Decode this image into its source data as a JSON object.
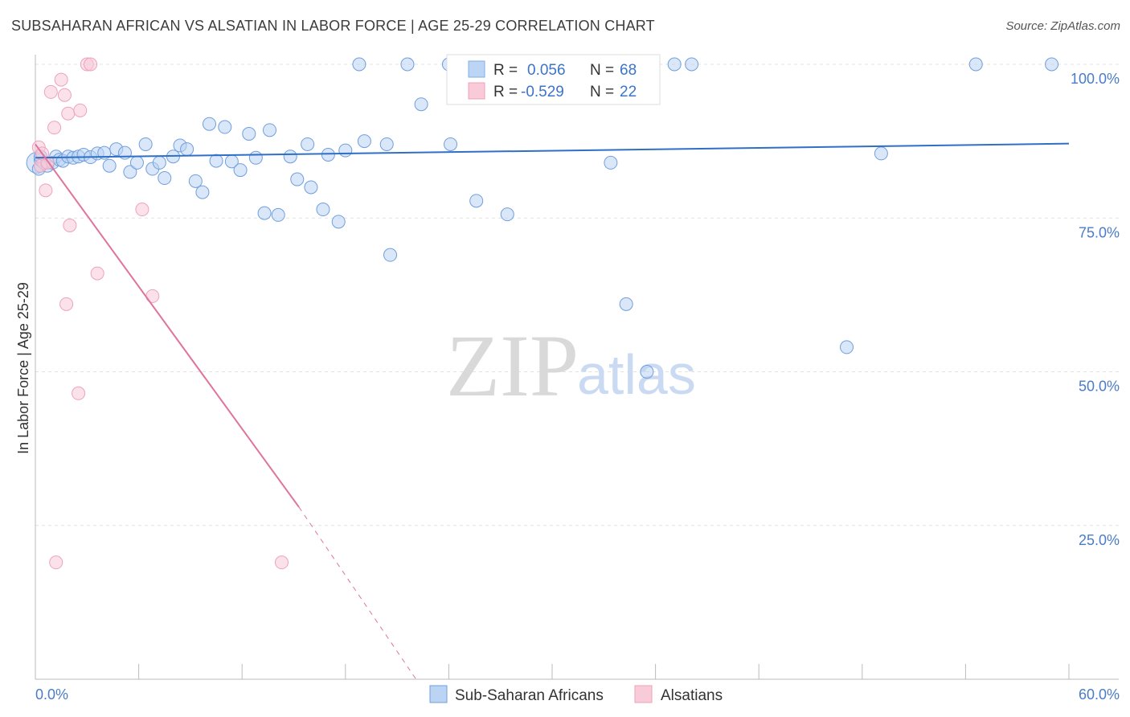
{
  "chart_data": {
    "type": "scatter",
    "title": "SUBSAHARAN AFRICAN VS ALSATIAN IN LABOR FORCE | AGE 25-29 CORRELATION CHART",
    "source": "Source: ZipAtlas.com",
    "xlabel": "",
    "ylabel": "In Labor Force | Age 25-29",
    "xlim": [
      0,
      60
    ],
    "ylim": [
      0,
      100
    ],
    "x_tick_labels": [
      {
        "value": 0,
        "label": "0.0%"
      },
      {
        "value": 60,
        "label": "60.0%"
      }
    ],
    "y_tick_labels": [
      {
        "value": 100,
        "label": "100.0%"
      },
      {
        "value": 75,
        "label": "75.0%"
      },
      {
        "value": 50,
        "label": "50.0%"
      },
      {
        "value": 25,
        "label": "25.0%"
      }
    ],
    "x_minor_ticks": [
      6,
      12,
      18,
      24,
      30,
      36,
      42,
      48,
      54
    ],
    "watermark": {
      "zip": "ZIP",
      "atlas": "atlas"
    },
    "stats": [
      {
        "r_label": "R =",
        "r_value": "0.056",
        "n_label": "N =",
        "n_value": "68",
        "color": "#7faee8",
        "fill": "#bdd5f5"
      },
      {
        "r_label": "R =",
        "r_value": "-0.529",
        "n_label": "N =",
        "n_value": "22",
        "color": "#f0a0b8",
        "fill": "#f9cad8"
      }
    ],
    "series": [
      {
        "name": "Sub-Saharan Africans",
        "color": "#6f9fde",
        "fill": "#bcd4f3",
        "trend": {
          "x": [
            0,
            60
          ],
          "y": [
            84.8,
            87.1
          ],
          "color": "#2f6fc7",
          "dashed_from": null
        },
        "points": [
          [
            0.1,
            84
          ],
          [
            0.2,
            83
          ],
          [
            0.3,
            84.5
          ],
          [
            0.5,
            84
          ],
          [
            0.7,
            83.5
          ],
          [
            1,
            84
          ],
          [
            1.2,
            85
          ],
          [
            1.4,
            84.5
          ],
          [
            1.6,
            84.3
          ],
          [
            1.9,
            85
          ],
          [
            2.2,
            84.8
          ],
          [
            2.5,
            85
          ],
          [
            2.8,
            85.3
          ],
          [
            3.2,
            84.9
          ],
          [
            3.6,
            85.5
          ],
          [
            4,
            85.6
          ],
          [
            4.3,
            83.5
          ],
          [
            4.7,
            86.2
          ],
          [
            5.2,
            85.6
          ],
          [
            5.5,
            82.5
          ],
          [
            5.9,
            84
          ],
          [
            6.4,
            87
          ],
          [
            6.8,
            83
          ],
          [
            7.2,
            84
          ],
          [
            7.5,
            81.5
          ],
          [
            8,
            85
          ],
          [
            8.4,
            86.8
          ],
          [
            8.8,
            86.2
          ],
          [
            9.3,
            81
          ],
          [
            9.7,
            79.2
          ],
          [
            10.1,
            90.3
          ],
          [
            10.5,
            84.3
          ],
          [
            11,
            89.8
          ],
          [
            11.4,
            84.2
          ],
          [
            11.9,
            82.8
          ],
          [
            12.4,
            88.7
          ],
          [
            12.8,
            84.8
          ],
          [
            13.3,
            75.8
          ],
          [
            13.6,
            89.3
          ],
          [
            14.1,
            75.5
          ],
          [
            14.8,
            85
          ],
          [
            15.2,
            81.3
          ],
          [
            15.8,
            87
          ],
          [
            16,
            80
          ],
          [
            16.7,
            76.4
          ],
          [
            17,
            85.3
          ],
          [
            17.6,
            74.4
          ],
          [
            18,
            86
          ],
          [
            18.8,
            100
          ],
          [
            19.1,
            87.5
          ],
          [
            20.4,
            87
          ],
          [
            20.6,
            69
          ],
          [
            21.6,
            100
          ],
          [
            22.4,
            93.5
          ],
          [
            24,
            100
          ],
          [
            24.1,
            87
          ],
          [
            25.6,
            77.8
          ],
          [
            27.4,
            75.6
          ],
          [
            33.4,
            84
          ],
          [
            34.3,
            61
          ],
          [
            35.5,
            50
          ],
          [
            37.1,
            100
          ],
          [
            38.1,
            100
          ],
          [
            47.1,
            54
          ],
          [
            49.1,
            85.5
          ],
          [
            54.6,
            100
          ],
          [
            59,
            100
          ],
          [
            0.3,
            85
          ]
        ]
      },
      {
        "name": "Alsatians",
        "color": "#eea2bb",
        "fill": "#f8cbd9",
        "trend": {
          "x": [
            0,
            15.3,
            22.1
          ],
          "y": [
            87,
            28,
            0
          ],
          "color": "#e0739d",
          "dashed_from": 15.3
        },
        "points": [
          [
            0.2,
            86.5
          ],
          [
            0.5,
            84
          ],
          [
            0.6,
            79.5
          ],
          [
            0.9,
            95.5
          ],
          [
            1.1,
            89.7
          ],
          [
            1.5,
            97.5
          ],
          [
            1.7,
            95
          ],
          [
            1.9,
            92
          ],
          [
            2,
            73.8
          ],
          [
            2.6,
            92.5
          ],
          [
            3,
            100
          ],
          [
            3.2,
            100
          ],
          [
            3.6,
            66
          ],
          [
            1.8,
            61
          ],
          [
            6.2,
            76.4
          ],
          [
            6.8,
            62.3
          ],
          [
            2.5,
            46.5
          ],
          [
            1.2,
            19
          ],
          [
            14.3,
            19
          ],
          [
            0.3,
            83.5
          ],
          [
            0.7,
            84
          ],
          [
            0.4,
            85.5
          ]
        ]
      }
    ]
  }
}
